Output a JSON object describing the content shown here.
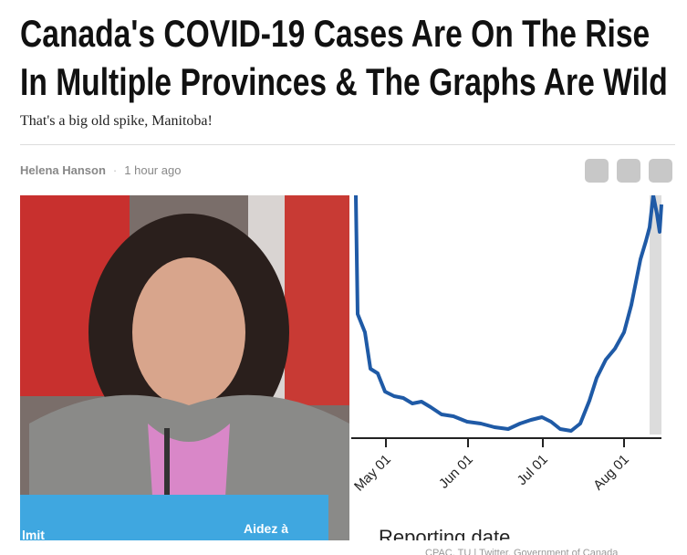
{
  "header": {
    "title_line1": "Canada's COVID-19 Cases Are On The Rise",
    "title_line2": "In Multiple Provinces & The Graphs Are Wild",
    "subtitle": "That's a big old spike, Manitoba!"
  },
  "byline": {
    "author": "Helena Hanson",
    "separator": "·",
    "time": "1 hour ago"
  },
  "image": {
    "sign_text": "Aidez à",
    "sign_text_left": "lmit",
    "axis_labels": [
      "May 01",
      "Jun 01",
      "Jul 01",
      "Aug 01"
    ],
    "axis_title": "Reporting date",
    "credit": "CPAC, TU | Twitter, Government of Canada"
  }
}
